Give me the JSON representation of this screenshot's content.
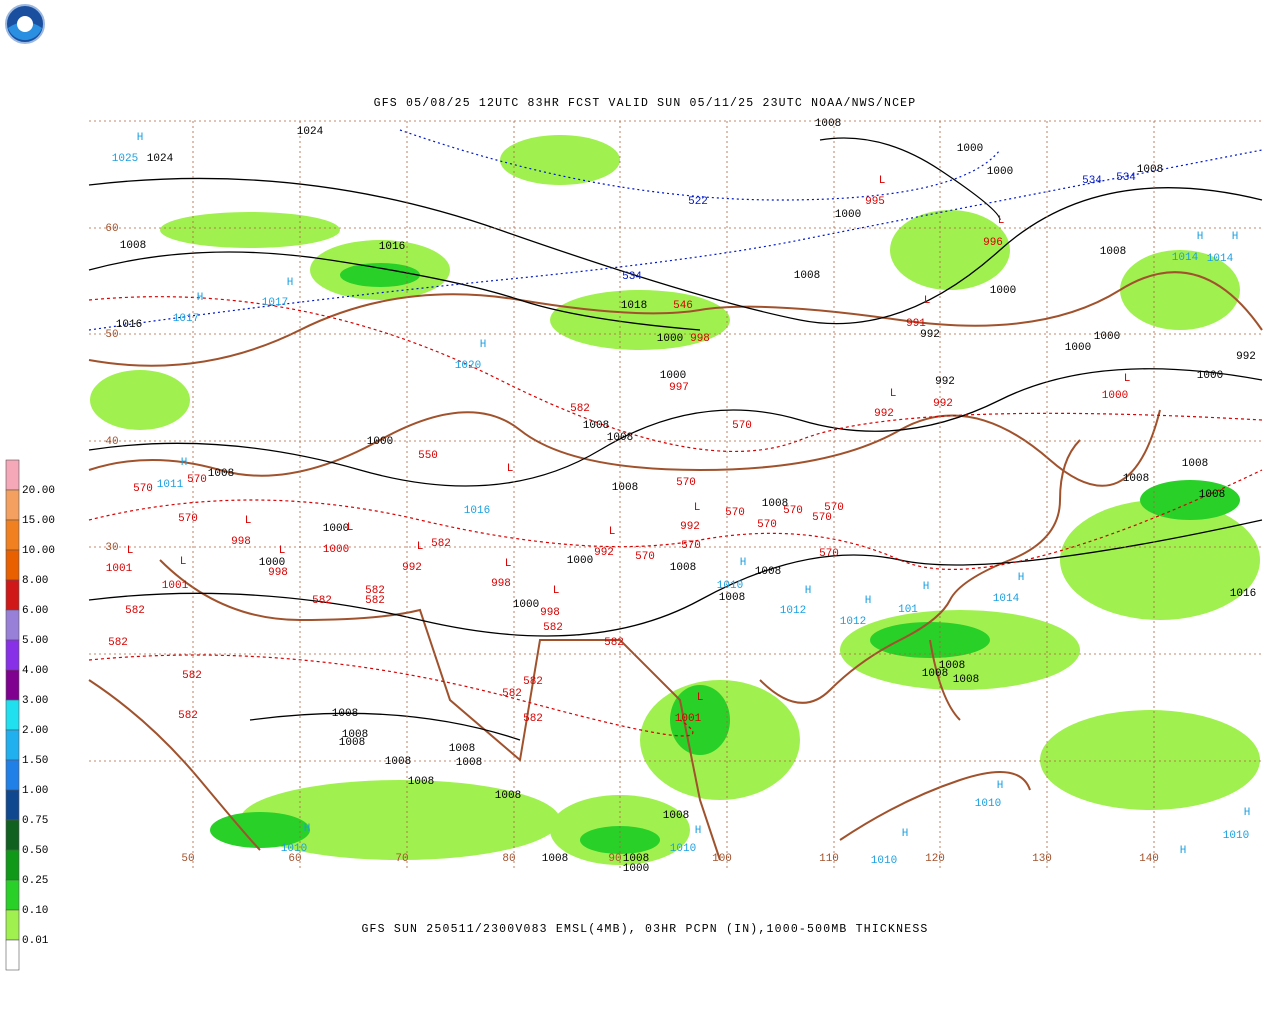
{
  "header": {
    "title": "GFS 05/08/25 12UTC 83HR FCST VALID SUN 05/11/25 23UTC NOAA/NWS/NCEP"
  },
  "footer": {
    "caption": "GFS SUN 250511/2300V083 EMSL(4MB), 03HR PCPN (IN),1000-500MB THICKNESS"
  },
  "legend": {
    "labels": [
      "20.00",
      "15.00",
      "10.00",
      "8.00",
      "6.00",
      "5.00",
      "4.00",
      "3.00",
      "2.00",
      "1.50",
      "1.00",
      "0.75",
      "0.50",
      "0.25",
      "0.10",
      "0.01"
    ],
    "colors": [
      "#f4a8b8",
      "#f4a060",
      "#f08020",
      "#e86000",
      "#d01818",
      "#9880d8",
      "#8830e8",
      "#800090",
      "#20e0f0",
      "#20b0f0",
      "#2080e8",
      "#104890",
      "#106020",
      "#109818",
      "#28d028",
      "#a0f050",
      "#ffffff"
    ]
  },
  "map": {
    "latitude_labels": [
      "60",
      "50",
      "40",
      "30"
    ],
    "longitude_labels": [
      "50",
      "60",
      "70",
      "80",
      "90",
      "100",
      "110",
      "120",
      "130",
      "140"
    ],
    "label_groups": [
      {
        "color": "#000000",
        "texts": [
          "1024",
          "1024",
          "1008",
          "1016",
          "1016",
          "1018",
          "1000",
          "1000",
          "1008",
          "1000",
          "1008",
          "1008",
          "1000",
          "992",
          "1000",
          "1000",
          "992",
          "1000",
          "992",
          "1000",
          "1000",
          "1008",
          "1008",
          "1000",
          "1008",
          "1000",
          "1008",
          "1008",
          "1000",
          "1000",
          "1008",
          "1008",
          "1008",
          "1016",
          "1008",
          "1008",
          "1008",
          "1008",
          "1008",
          "1008",
          "1008",
          "1008",
          "1008",
          "1008",
          "1008",
          "1008",
          "1008",
          "1008",
          "1000",
          "1008",
          "1008",
          "1008",
          "1008",
          "1000"
        ]
      },
      {
        "color": "#d80000",
        "texts": [
          "L",
          "995",
          "L",
          "996",
          "L",
          "991",
          "546",
          "998",
          "997",
          "L",
          "1000",
          "L",
          "992",
          "992",
          "570",
          "570",
          "570",
          "570",
          "L",
          "998",
          "L",
          "1001",
          "L",
          "1001",
          "L",
          "998",
          "L",
          "1000",
          "L",
          "582",
          "992",
          "550",
          "L",
          "570",
          "L",
          "992",
          "570",
          "570",
          "570",
          "570",
          "570",
          "L",
          "992",
          "570",
          "570",
          "570",
          "L",
          "998",
          "L",
          "998",
          "582",
          "582",
          "582",
          "582",
          "582",
          "582",
          "582",
          "582",
          "582",
          "582",
          "582",
          "582",
          "L",
          "1001",
          "582"
        ]
      },
      {
        "color": "#1ca0e0",
        "texts": [
          "H",
          "1025",
          "H",
          "1017",
          "H",
          "1017",
          "H",
          "1020",
          "H",
          "1014",
          "H",
          "1014",
          "H",
          "1011",
          "H",
          "1010",
          "H",
          "1012",
          "H",
          "1012",
          "H",
          "101",
          "H",
          "1014",
          "H",
          "1010",
          "H",
          "1010",
          "H",
          "1010",
          "H",
          "1010",
          "H",
          "1010",
          "H",
          "1016"
        ]
      },
      {
        "color": "#0018c8",
        "texts": [
          "522",
          "534",
          "534",
          "534"
        ]
      }
    ]
  }
}
